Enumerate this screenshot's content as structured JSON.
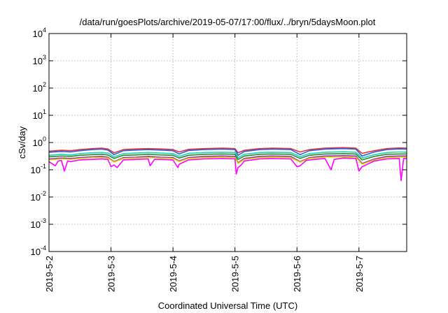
{
  "chart_data": {
    "type": "line",
    "title": "/data/run/goesPlots/archive/2019-05-07/17:00/flux/../bryn/5daysMoon.plot",
    "xlabel": "Coordinated Universal Time (UTC)",
    "ylabel": "cSv/day",
    "yscale": "log",
    "ylim": [
      0.0001,
      10000
    ],
    "y_ticks": [
      {
        "base": "10",
        "exp": "-4"
      },
      {
        "base": "10",
        "exp": "-3"
      },
      {
        "base": "10",
        "exp": "-2"
      },
      {
        "base": "10",
        "exp": "-1"
      },
      {
        "base": "10",
        "exp": "0"
      },
      {
        "base": "10",
        "exp": "1"
      },
      {
        "base": "10",
        "exp": "2"
      },
      {
        "base": "10",
        "exp": "3"
      },
      {
        "base": "10",
        "exp": "4"
      }
    ],
    "x_ticks": [
      "2019-5-2",
      "2019-5-3",
      "2019-5-4",
      "2019-5-5",
      "2019-5-6",
      "2019-5-7"
    ],
    "x_range_days": [
      0,
      5.77
    ],
    "grid": true,
    "colors": [
      "#e8303a",
      "#2b5fd9",
      "#20d0c0",
      "#2a8a2a",
      "#9b2bb8",
      "#d6d600",
      "#ff00ff"
    ],
    "series": [
      {
        "color": "#e8303a",
        "points": [
          [
            0,
            0.48
          ],
          [
            0.2,
            0.52
          ],
          [
            0.35,
            0.5
          ],
          [
            0.5,
            0.55
          ],
          [
            0.7,
            0.6
          ],
          [
            0.85,
            0.62
          ],
          [
            0.95,
            0.58
          ],
          [
            1.05,
            0.42
          ],
          [
            1.2,
            0.55
          ],
          [
            1.4,
            0.58
          ],
          [
            1.6,
            0.6
          ],
          [
            1.8,
            0.58
          ],
          [
            2.0,
            0.55
          ],
          [
            2.1,
            0.45
          ],
          [
            2.25,
            0.56
          ],
          [
            2.5,
            0.6
          ],
          [
            2.8,
            0.62
          ],
          [
            3.0,
            0.6
          ],
          [
            3.05,
            0.42
          ],
          [
            3.15,
            0.52
          ],
          [
            3.4,
            0.6
          ],
          [
            3.6,
            0.62
          ],
          [
            3.9,
            0.6
          ],
          [
            4.05,
            0.45
          ],
          [
            4.2,
            0.55
          ],
          [
            4.45,
            0.62
          ],
          [
            4.75,
            0.65
          ],
          [
            4.95,
            0.62
          ],
          [
            5.05,
            0.4
          ],
          [
            5.25,
            0.5
          ],
          [
            5.45,
            0.6
          ],
          [
            5.65,
            0.63
          ],
          [
            5.77,
            0.62
          ]
        ]
      },
      {
        "color": "#2b5fd9",
        "points": [
          [
            0,
            0.44
          ],
          [
            0.2,
            0.47
          ],
          [
            0.35,
            0.45
          ],
          [
            0.5,
            0.5
          ],
          [
            0.7,
            0.55
          ],
          [
            0.85,
            0.57
          ],
          [
            0.95,
            0.53
          ],
          [
            1.05,
            0.36
          ],
          [
            1.2,
            0.5
          ],
          [
            1.4,
            0.53
          ],
          [
            1.6,
            0.55
          ],
          [
            1.8,
            0.53
          ],
          [
            2.0,
            0.5
          ],
          [
            2.1,
            0.38
          ],
          [
            2.25,
            0.51
          ],
          [
            2.5,
            0.55
          ],
          [
            2.8,
            0.57
          ],
          [
            3.0,
            0.55
          ],
          [
            3.05,
            0.34
          ],
          [
            3.15,
            0.47
          ],
          [
            3.4,
            0.55
          ],
          [
            3.6,
            0.57
          ],
          [
            3.9,
            0.55
          ],
          [
            4.05,
            0.36
          ],
          [
            4.2,
            0.5
          ],
          [
            4.45,
            0.57
          ],
          [
            4.75,
            0.6
          ],
          [
            4.95,
            0.57
          ],
          [
            5.05,
            0.32
          ],
          [
            5.25,
            0.45
          ],
          [
            5.45,
            0.55
          ],
          [
            5.65,
            0.58
          ],
          [
            5.77,
            0.57
          ]
        ]
      },
      {
        "color": "#20d0c0",
        "points": [
          [
            0,
            0.34
          ],
          [
            0.2,
            0.37
          ],
          [
            0.35,
            0.35
          ],
          [
            0.5,
            0.39
          ],
          [
            0.7,
            0.42
          ],
          [
            0.85,
            0.43
          ],
          [
            0.95,
            0.41
          ],
          [
            1.05,
            0.3
          ],
          [
            1.2,
            0.39
          ],
          [
            1.4,
            0.41
          ],
          [
            1.6,
            0.43
          ],
          [
            1.8,
            0.41
          ],
          [
            2.0,
            0.39
          ],
          [
            2.1,
            0.31
          ],
          [
            2.25,
            0.4
          ],
          [
            2.5,
            0.43
          ],
          [
            2.8,
            0.44
          ],
          [
            3.0,
            0.43
          ],
          [
            3.05,
            0.28
          ],
          [
            3.15,
            0.37
          ],
          [
            3.4,
            0.43
          ],
          [
            3.6,
            0.44
          ],
          [
            3.9,
            0.43
          ],
          [
            4.05,
            0.3
          ],
          [
            4.2,
            0.39
          ],
          [
            4.45,
            0.44
          ],
          [
            4.75,
            0.46
          ],
          [
            4.95,
            0.44
          ],
          [
            5.05,
            0.27
          ],
          [
            5.25,
            0.36
          ],
          [
            5.45,
            0.43
          ],
          [
            5.65,
            0.45
          ],
          [
            5.77,
            0.44
          ]
        ]
      },
      {
        "color": "#2a8a2a",
        "points": [
          [
            0,
            0.3
          ],
          [
            0.2,
            0.32
          ],
          [
            0.35,
            0.31
          ],
          [
            0.5,
            0.34
          ],
          [
            0.7,
            0.36
          ],
          [
            0.85,
            0.37
          ],
          [
            0.95,
            0.35
          ],
          [
            1.05,
            0.26
          ],
          [
            1.2,
            0.34
          ],
          [
            1.4,
            0.35
          ],
          [
            1.6,
            0.37
          ],
          [
            1.8,
            0.35
          ],
          [
            2.0,
            0.34
          ],
          [
            2.1,
            0.27
          ],
          [
            2.25,
            0.34
          ],
          [
            2.5,
            0.37
          ],
          [
            2.8,
            0.38
          ],
          [
            3.0,
            0.37
          ],
          [
            3.05,
            0.24
          ],
          [
            3.15,
            0.32
          ],
          [
            3.4,
            0.37
          ],
          [
            3.6,
            0.38
          ],
          [
            3.9,
            0.37
          ],
          [
            4.05,
            0.26
          ],
          [
            4.2,
            0.34
          ],
          [
            4.45,
            0.38
          ],
          [
            4.75,
            0.39
          ],
          [
            4.95,
            0.38
          ],
          [
            5.05,
            0.23
          ],
          [
            5.25,
            0.31
          ],
          [
            5.45,
            0.37
          ],
          [
            5.65,
            0.38
          ],
          [
            5.77,
            0.38
          ]
        ]
      },
      {
        "color": "#9b2bb8",
        "points": [
          [
            0,
            0.25
          ],
          [
            0.2,
            0.27
          ],
          [
            0.35,
            0.26
          ],
          [
            0.5,
            0.28
          ],
          [
            0.7,
            0.3
          ],
          [
            0.85,
            0.31
          ],
          [
            0.95,
            0.29
          ],
          [
            1.05,
            0.2
          ],
          [
            1.2,
            0.28
          ],
          [
            1.4,
            0.29
          ],
          [
            1.6,
            0.31
          ],
          [
            1.8,
            0.29
          ],
          [
            2.0,
            0.28
          ],
          [
            2.1,
            0.21
          ],
          [
            2.25,
            0.28
          ],
          [
            2.5,
            0.31
          ],
          [
            2.8,
            0.32
          ],
          [
            3.0,
            0.31
          ],
          [
            3.05,
            0.18
          ],
          [
            3.15,
            0.26
          ],
          [
            3.4,
            0.31
          ],
          [
            3.6,
            0.32
          ],
          [
            3.9,
            0.31
          ],
          [
            4.05,
            0.2
          ],
          [
            4.2,
            0.28
          ],
          [
            4.45,
            0.32
          ],
          [
            4.75,
            0.33
          ],
          [
            4.95,
            0.32
          ],
          [
            5.05,
            0.17
          ],
          [
            5.25,
            0.25
          ],
          [
            5.45,
            0.31
          ],
          [
            5.65,
            0.32
          ],
          [
            5.77,
            0.32
          ]
        ]
      },
      {
        "color": "#d6d600",
        "points": [
          [
            0,
            0.23
          ],
          [
            0.2,
            0.25
          ],
          [
            0.35,
            0.24
          ],
          [
            0.5,
            0.26
          ],
          [
            0.7,
            0.28
          ],
          [
            0.85,
            0.28
          ],
          [
            0.95,
            0.27
          ],
          [
            1.05,
            0.19
          ],
          [
            1.2,
            0.26
          ],
          [
            1.4,
            0.27
          ],
          [
            1.6,
            0.28
          ],
          [
            1.8,
            0.27
          ],
          [
            2.0,
            0.26
          ],
          [
            2.1,
            0.2
          ],
          [
            2.25,
            0.26
          ],
          [
            2.5,
            0.28
          ],
          [
            2.8,
            0.29
          ],
          [
            3.0,
            0.28
          ],
          [
            3.05,
            0.17
          ],
          [
            3.15,
            0.24
          ],
          [
            3.4,
            0.28
          ],
          [
            3.6,
            0.29
          ],
          [
            3.9,
            0.28
          ],
          [
            4.05,
            0.19
          ],
          [
            4.2,
            0.26
          ],
          [
            4.45,
            0.29
          ],
          [
            4.75,
            0.3
          ],
          [
            4.95,
            0.29
          ],
          [
            5.05,
            0.16
          ],
          [
            5.25,
            0.23
          ],
          [
            5.45,
            0.28
          ],
          [
            5.65,
            0.29
          ],
          [
            5.77,
            0.29
          ]
        ]
      },
      {
        "color": "#ff00ff",
        "points": [
          [
            0,
            0.2
          ],
          [
            0.1,
            0.14
          ],
          [
            0.15,
            0.21
          ],
          [
            0.2,
            0.22
          ],
          [
            0.25,
            0.09
          ],
          [
            0.3,
            0.21
          ],
          [
            0.35,
            0.2
          ],
          [
            0.5,
            0.23
          ],
          [
            0.7,
            0.24
          ],
          [
            0.85,
            0.25
          ],
          [
            0.95,
            0.24
          ],
          [
            1.0,
            0.13
          ],
          [
            1.05,
            0.15
          ],
          [
            1.1,
            0.12
          ],
          [
            1.2,
            0.23
          ],
          [
            1.4,
            0.24
          ],
          [
            1.6,
            0.25
          ],
          [
            1.63,
            0.14
          ],
          [
            1.7,
            0.24
          ],
          [
            1.8,
            0.24
          ],
          [
            2.0,
            0.23
          ],
          [
            2.08,
            0.12
          ],
          [
            2.1,
            0.16
          ],
          [
            2.25,
            0.23
          ],
          [
            2.5,
            0.25
          ],
          [
            2.8,
            0.26
          ],
          [
            3.0,
            0.25
          ],
          [
            3.02,
            0.07
          ],
          [
            3.05,
            0.12
          ],
          [
            3.1,
            0.15
          ],
          [
            3.15,
            0.21
          ],
          [
            3.4,
            0.25
          ],
          [
            3.6,
            0.26
          ],
          [
            3.9,
            0.25
          ],
          [
            4.0,
            0.13
          ],
          [
            4.05,
            0.14
          ],
          [
            4.15,
            0.22
          ],
          [
            4.2,
            0.23
          ],
          [
            4.45,
            0.26
          ],
          [
            4.55,
            0.1
          ],
          [
            4.6,
            0.24
          ],
          [
            4.75,
            0.27
          ],
          [
            4.95,
            0.26
          ],
          [
            5.0,
            0.09
          ],
          [
            5.05,
            0.13
          ],
          [
            5.25,
            0.21
          ],
          [
            5.45,
            0.25
          ],
          [
            5.65,
            0.26
          ],
          [
            5.68,
            0.04
          ],
          [
            5.72,
            0.26
          ],
          [
            5.77,
            0.26
          ]
        ]
      }
    ]
  }
}
